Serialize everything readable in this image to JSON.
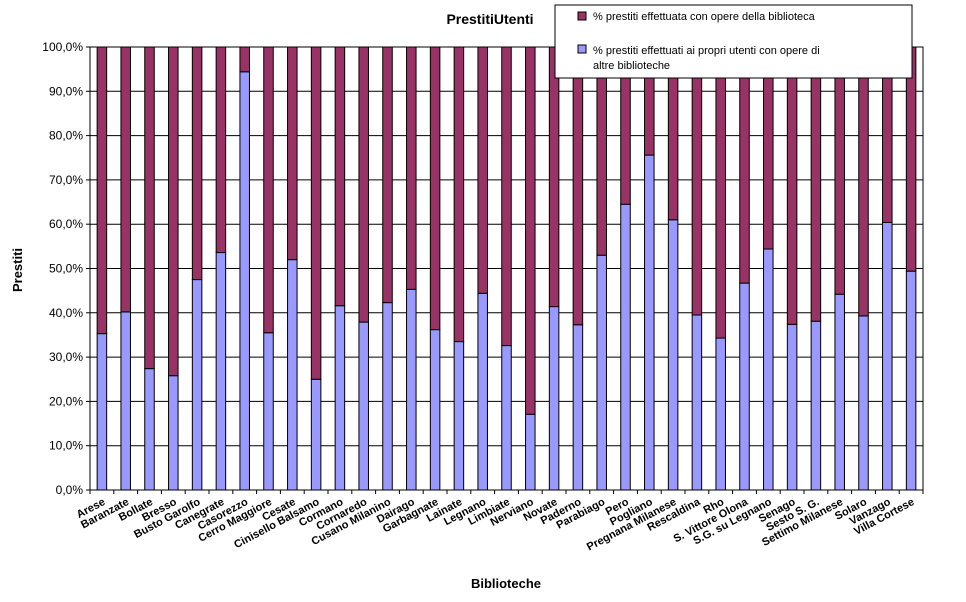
{
  "chart_data": {
    "type": "bar",
    "stacked": true,
    "title": "PrestitiUtenti",
    "xlabel": "Biblioteche",
    "ylabel": "Prestiti",
    "ylim": [
      0,
      100
    ],
    "yticks": [
      "0,0%",
      "10,0%",
      "20,0%",
      "30,0%",
      "40,0%",
      "50,0%",
      "60,0%",
      "70,0%",
      "80,0%",
      "90,0%",
      "100,0%"
    ],
    "grid": true,
    "legend_position": "top-right",
    "categories": [
      "Arese",
      "Baranzate",
      "Bollate",
      "Bresso",
      "Busto Garolfo",
      "Canegrate",
      "Casorezzo",
      "Cerro Maggiore",
      "Cesate",
      "Cinisello Balsamo",
      "Cormano",
      "Cornaredo",
      "Cusano Milanino",
      "Dairago",
      "Garbagnate",
      "Lainate",
      "Legnano",
      "Limbiate",
      "Nerviano",
      "Novate",
      "Paderno",
      "Parabiago",
      "Pero",
      "Pogliano",
      "Pregnana Milanese",
      "Rescaldina",
      "Rho",
      "S. Vittore Olona",
      "S.G. su Legnano",
      "Senago",
      "Sesto S. G.",
      "Settimo Milanese",
      "Solaro",
      "Vanzago",
      "Villa Cortese"
    ],
    "series": [
      {
        "name": "% prestiti effettuati ai propri utenti con opere di altre biblioteche",
        "color": "#9999ff",
        "values": [
          35.3,
          40.2,
          27.4,
          25.8,
          47.5,
          53.6,
          94.4,
          35.5,
          52.0,
          25.0,
          41.6,
          37.9,
          42.3,
          45.3,
          36.2,
          33.5,
          44.4,
          32.6,
          17.1,
          41.4,
          37.3,
          53.0,
          64.5,
          75.6,
          61.0,
          39.5,
          34.3,
          46.7,
          54.4,
          37.4,
          38.1,
          44.2,
          39.3,
          60.4,
          49.4
        ]
      },
      {
        "name": "% prestiti effettuata con opere della biblioteca",
        "color": "#993366",
        "values": [
          64.7,
          59.8,
          72.6,
          74.2,
          52.5,
          46.4,
          5.6,
          64.5,
          48.0,
          75.0,
          58.4,
          62.1,
          57.7,
          54.7,
          63.8,
          66.5,
          55.6,
          67.4,
          82.9,
          58.6,
          62.7,
          47.0,
          35.5,
          24.4,
          39.0,
          60.5,
          65.7,
          53.3,
          45.6,
          62.6,
          61.9,
          55.8,
          60.7,
          39.6,
          50.6
        ]
      }
    ]
  }
}
